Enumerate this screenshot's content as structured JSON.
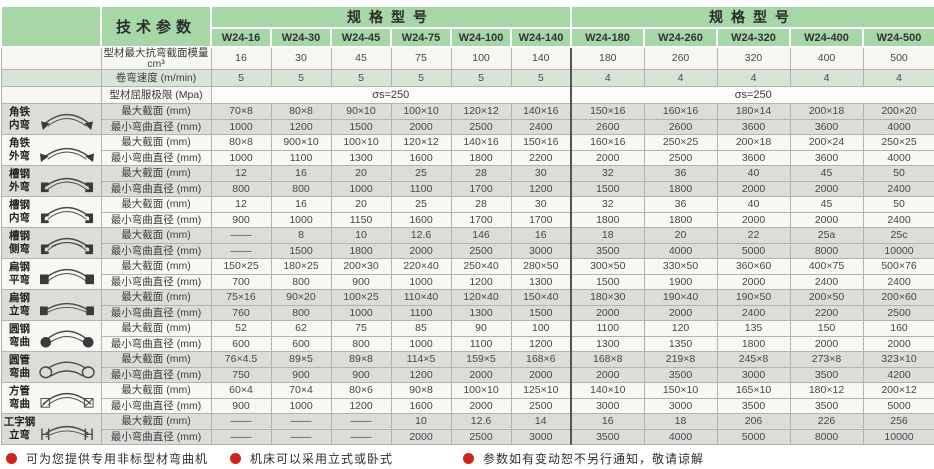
{
  "header": {
    "tech_params": "技术参数",
    "spec_model_left": "规格型号",
    "spec_model_right": "规格型号",
    "models": [
      "W24-16",
      "W24-30",
      "W24-45",
      "W24-75",
      "W24-100",
      "W24-140",
      "W24-180",
      "W24-260",
      "W24-320",
      "W24-400",
      "W24-500"
    ]
  },
  "params": {
    "modulus_label": "型材最大抗弯截面模量cm³",
    "modulus_values": [
      "16",
      "30",
      "45",
      "75",
      "100",
      "140",
      "180",
      "260",
      "320",
      "400",
      "500"
    ],
    "speed_label": "卷弯速度 (m/min)",
    "speed_values": [
      "5",
      "5",
      "5",
      "5",
      "5",
      "5",
      "4",
      "4",
      "4",
      "4",
      "4"
    ],
    "yield_label": "型材屈服极限 (Mpa)",
    "yield_left": "σs=250",
    "yield_right": "σs=250"
  },
  "row_labels": {
    "max": "最大截面 (mm)",
    "min": "最小弯曲直径 (mm)"
  },
  "profiles": [
    {
      "name_top": "角铁",
      "name_bottom": "内弯",
      "icon": "angle-inner-icon",
      "max": [
        "70×8",
        "80×8",
        "90×10",
        "100×10",
        "120×12",
        "140×16",
        "150×16",
        "160×16",
        "180×14",
        "200×18",
        "200×20"
      ],
      "min": [
        "1000",
        "1200",
        "1500",
        "2000",
        "2500",
        "2400",
        "2600",
        "2600",
        "3600",
        "3600",
        "4000"
      ]
    },
    {
      "name_top": "角铁",
      "name_bottom": "外弯",
      "icon": "angle-outer-icon",
      "max": [
        "80×8",
        "900×10",
        "100×10",
        "120×12",
        "140×16",
        "150×16",
        "160×16",
        "250×25",
        "200×18",
        "200×24",
        "250×25"
      ],
      "min": [
        "1000",
        "1100",
        "1300",
        "1600",
        "1800",
        "2200",
        "2000",
        "2500",
        "3600",
        "3600",
        "4000"
      ]
    },
    {
      "name_top": "槽钢",
      "name_bottom": "外弯",
      "icon": "channel-outer-icon",
      "max": [
        "12",
        "16",
        "20",
        "25",
        "28",
        "30",
        "32",
        "36",
        "40",
        "45",
        "50"
      ],
      "min": [
        "800",
        "800",
        "1000",
        "1100",
        "1700",
        "1200",
        "1500",
        "1800",
        "2000",
        "2000",
        "2400"
      ]
    },
    {
      "name_top": "槽钢",
      "name_bottom": "内弯",
      "icon": "channel-inner-icon",
      "max": [
        "12",
        "16",
        "20",
        "25",
        "28",
        "30",
        "32",
        "36",
        "40",
        "45",
        "50"
      ],
      "min": [
        "900",
        "1000",
        "1150",
        "1600",
        "1700",
        "1700",
        "1800",
        "1800",
        "2000",
        "2000",
        "2400"
      ]
    },
    {
      "name_top": "槽钢",
      "name_bottom": "侧弯",
      "icon": "channel-side-icon",
      "max": [
        "——",
        "8",
        "10",
        "12.6",
        "146",
        "16",
        "18",
        "20",
        "22",
        "25a",
        "25c"
      ],
      "min": [
        "——",
        "1500",
        "1800",
        "2000",
        "2500",
        "3000",
        "3500",
        "4000",
        "5000",
        "8000",
        "10000"
      ]
    },
    {
      "name_top": "扁钢",
      "name_bottom": "平弯",
      "icon": "flat-steel-flat-icon",
      "max": [
        "150×25",
        "180×25",
        "200×30",
        "220×40",
        "250×40",
        "280×50",
        "300×50",
        "330×50",
        "360×60",
        "400×75",
        "500×76"
      ],
      "min": [
        "700",
        "800",
        "900",
        "1000",
        "1200",
        "1300",
        "1500",
        "1900",
        "2000",
        "2400",
        "2400"
      ]
    },
    {
      "name_top": "扁钢",
      "name_bottom": "立弯",
      "icon": "flat-steel-vertical-icon",
      "max": [
        "75×16",
        "90×20",
        "100×25",
        "110×40",
        "120×40",
        "150×40",
        "180×30",
        "190×40",
        "190×50",
        "200×50",
        "200×60"
      ],
      "min": [
        "760",
        "800",
        "1000",
        "1100",
        "1300",
        "1500",
        "2000",
        "2000",
        "2400",
        "2200",
        "2500"
      ]
    },
    {
      "name_top": "圆钢",
      "name_bottom": "弯曲",
      "icon": "round-steel-icon",
      "max": [
        "52",
        "62",
        "75",
        "85",
        "90",
        "100",
        "1100",
        "120",
        "135",
        "150",
        "160"
      ],
      "min": [
        "600",
        "600",
        "800",
        "1000",
        "1100",
        "1200",
        "1300",
        "1350",
        "1800",
        "2000",
        "2000"
      ]
    },
    {
      "name_top": "圆管",
      "name_bottom": "弯曲",
      "icon": "round-pipe-icon",
      "max": [
        "76×4.5",
        "89×5",
        "89×8",
        "114×5",
        "159×5",
        "168×6",
        "168×8",
        "219×8",
        "245×8",
        "273×8",
        "323×10"
      ],
      "min": [
        "750",
        "900",
        "900",
        "1200",
        "2000",
        "2000",
        "2000",
        "3500",
        "3000",
        "3500",
        "4200"
      ]
    },
    {
      "name_top": "方管",
      "name_bottom": "弯曲",
      "icon": "square-tube-icon",
      "max": [
        "60×4",
        "70×4",
        "80×6",
        "90×8",
        "100×10",
        "125×10",
        "140×10",
        "150×10",
        "165×10",
        "180×12",
        "200×12"
      ],
      "min": [
        "900",
        "1000",
        "1200",
        "1600",
        "2000",
        "2500",
        "3000",
        "3000",
        "3500",
        "3500",
        "5000"
      ]
    },
    {
      "name_top": "工字钢",
      "name_bottom": "立弯",
      "icon": "i-beam-icon",
      "max": [
        "——",
        "——",
        "——",
        "10",
        "12.6",
        "14",
        "16",
        "18",
        "206",
        "226",
        "256"
      ],
      "min": [
        "——",
        "——",
        "——",
        "2000",
        "2500",
        "3000",
        "3500",
        "4000",
        "5000",
        "8000",
        "10000"
      ]
    }
  ],
  "footer": {
    "notes": [
      "可为您提供专用非标型材弯曲机",
      "机床可以采用立式或卧式",
      "参数如有变动恕不另行通知，敬请谅解"
    ]
  },
  "colors": {
    "header_green": "#a6d7a6",
    "row_gray": "#dcddd9",
    "row_white": "#f7f7f4",
    "speed_row_green": "#d9e4d6",
    "dot_red": "#ce2117"
  }
}
